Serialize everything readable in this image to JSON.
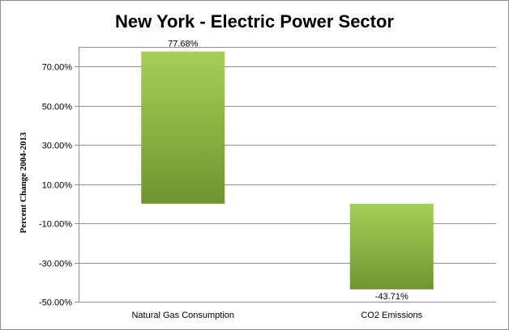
{
  "chart_data": {
    "type": "bar",
    "title": "New York - Electric Power Sector",
    "ylabel": "Percent Change  2004-2013",
    "xlabel": "",
    "categories": [
      "Natural Gas Consumption",
      "CO2 Emissions"
    ],
    "values": [
      77.68,
      -43.71
    ],
    "data_labels": [
      "77.68%",
      "-43.71%"
    ],
    "ylim": [
      -50,
      80
    ],
    "y_ticks": [
      -50,
      -30,
      -10,
      10,
      30,
      50,
      70
    ],
    "y_tick_labels": [
      "-50.00%",
      "-30.00%",
      "-10.00%",
      "10.00%",
      "30.00%",
      "50.00%",
      "70.00%"
    ],
    "grid": true,
    "legend": "none",
    "colors": {
      "bar_light": "#a6cf57",
      "bar_dark": "#6e9530",
      "grid": "#8f8f8f"
    }
  }
}
